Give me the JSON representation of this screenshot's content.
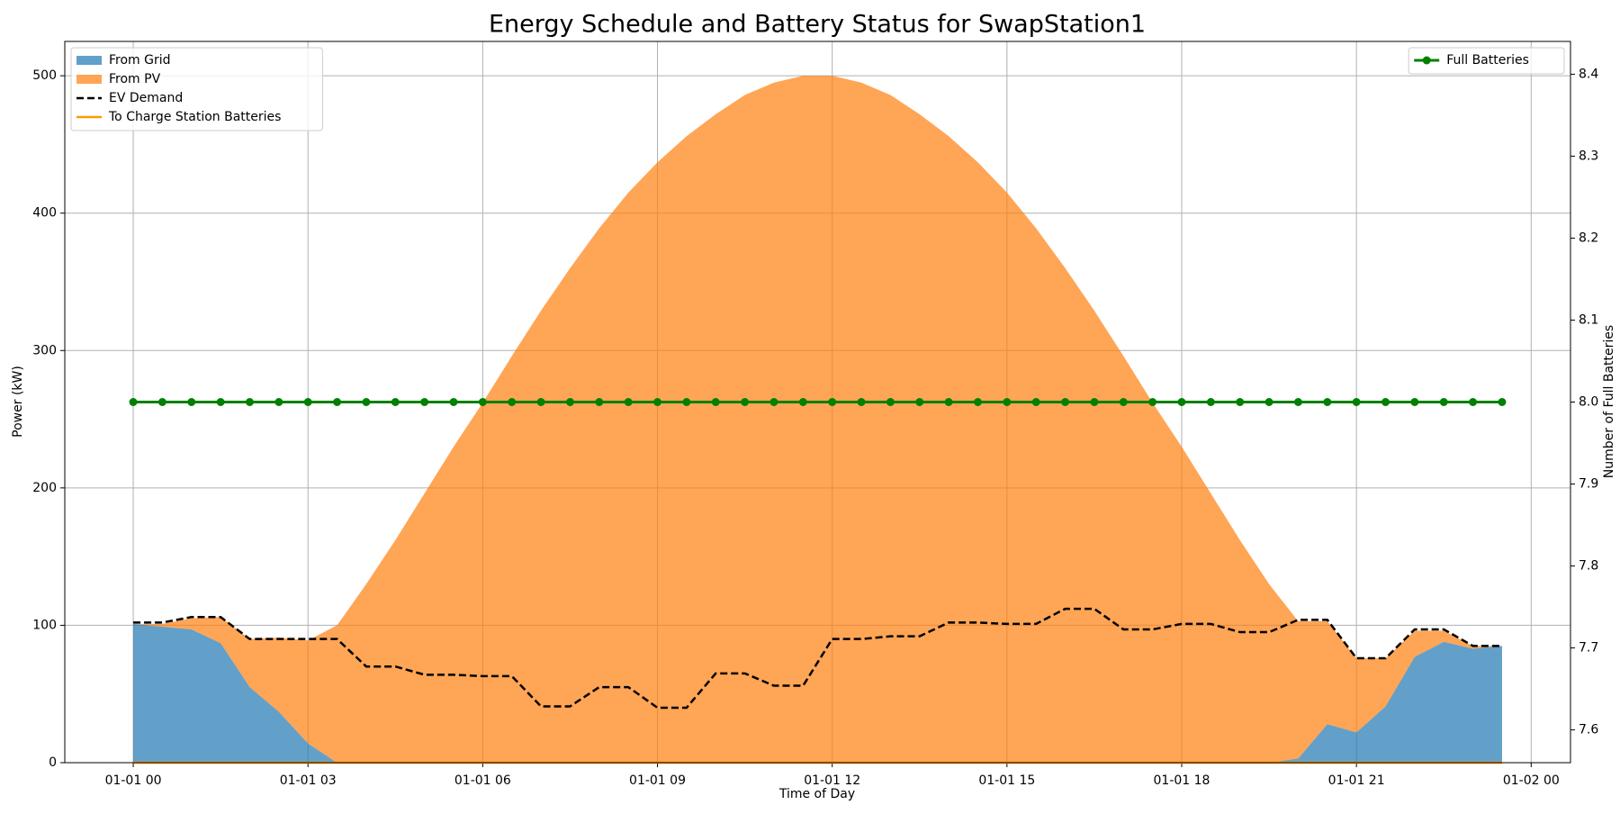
{
  "chart_data": {
    "type": "stacked-area-line",
    "title": "Energy Schedule and Battery Status for SwapStation1",
    "x_label": "Time of Day",
    "y_label": "Power (kW)",
    "y2_label": "Number of Full Batteries",
    "x": [
      0,
      0.5,
      1,
      1.5,
      2,
      2.5,
      3,
      3.5,
      4,
      4.5,
      5,
      5.5,
      6,
      6.5,
      7,
      7.5,
      8,
      8.5,
      9,
      9.5,
      10,
      10.5,
      11,
      11.5,
      12,
      12.5,
      13,
      13.5,
      14,
      14.5,
      15,
      15.5,
      16,
      16.5,
      17,
      17.5,
      18,
      18.5,
      19,
      19.5,
      20,
      20.5,
      21,
      21.5,
      22,
      22.5,
      23,
      23.5
    ],
    "xlim": [
      -1.175,
      24.675
    ],
    "xticks": [
      {
        "value": 0,
        "label": "01-01 00"
      },
      {
        "value": 3,
        "label": "01-01 03"
      },
      {
        "value": 6,
        "label": "01-01 06"
      },
      {
        "value": 9,
        "label": "01-01 09"
      },
      {
        "value": 12,
        "label": "01-01 12"
      },
      {
        "value": 15,
        "label": "01-01 15"
      },
      {
        "value": 18,
        "label": "01-01 18"
      },
      {
        "value": 21,
        "label": "01-01 21"
      },
      {
        "value": 24,
        "label": "01-02 00"
      }
    ],
    "ylim": [
      0,
      525
    ],
    "yticks": [
      0,
      100,
      200,
      300,
      400,
      500
    ],
    "y2lim": [
      7.56,
      8.44
    ],
    "y2ticks": [
      7.6,
      7.7,
      7.8,
      7.9,
      {
        "value": 8,
        "label": "8.0"
      },
      8.1,
      8.2,
      8.3,
      8.4
    ],
    "grid": true,
    "legend": "upper left",
    "legend2": "upper right",
    "series": [
      {
        "name": "From Grid",
        "kind": "area",
        "color": "#1f77b4",
        "opacity": 0.7,
        "values": [
          101,
          99,
          97,
          87,
          55,
          37,
          14,
          0,
          0,
          0,
          0,
          0,
          0,
          0,
          0,
          0,
          0,
          0,
          0,
          0,
          0,
          0,
          0,
          0,
          0,
          0,
          0,
          0,
          0,
          0,
          0,
          0,
          0,
          0,
          0,
          0,
          0,
          0,
          0,
          0,
          3,
          28,
          22,
          41,
          77,
          88,
          83,
          85
        ]
      },
      {
        "name": "From PV",
        "kind": "area",
        "color": "#ff7f0e",
        "opacity": 0.7,
        "values": [
          0,
          2,
          8,
          19,
          35,
          54,
          75,
          100,
          130,
          162,
          196,
          230,
          262,
          296,
          329,
          360,
          389,
          415,
          437,
          456,
          472,
          486,
          495,
          500,
          500,
          495,
          486,
          472,
          456,
          437,
          415,
          389,
          360,
          329,
          296,
          262,
          230,
          196,
          162,
          130,
          100,
          75,
          54,
          35,
          19,
          8,
          2,
          0
        ]
      },
      {
        "name": "EV Demand",
        "kind": "line",
        "linestyle": "dashed",
        "color": "#000000",
        "values": [
          102,
          102,
          106,
          106,
          90,
          90,
          90,
          90,
          70,
          70,
          64,
          64,
          63,
          63,
          41,
          41,
          55,
          55,
          40,
          40,
          65,
          65,
          56,
          56,
          90,
          90,
          92,
          92,
          102,
          102,
          101,
          101,
          112,
          112,
          97,
          97,
          101,
          101,
          95,
          95,
          104,
          104,
          76,
          76,
          97,
          97,
          85,
          85
        ]
      },
      {
        "name": "To Charge Station Batteries",
        "kind": "line",
        "color": "#ff9900",
        "values": [
          0,
          0,
          0,
          0,
          0,
          0,
          0,
          0,
          0,
          0,
          0,
          0,
          0,
          0,
          0,
          0,
          0,
          0,
          0,
          0,
          0,
          0,
          0,
          0,
          0,
          0,
          0,
          0,
          0,
          0,
          0,
          0,
          0,
          0,
          0,
          0,
          0,
          0,
          0,
          0,
          0,
          0,
          0,
          0,
          0,
          0,
          0,
          0
        ]
      },
      {
        "name": "Full Batteries",
        "kind": "line",
        "axis": "y2",
        "marker": true,
        "color": "#008000",
        "values": [
          8,
          8,
          8,
          8,
          8,
          8,
          8,
          8,
          8,
          8,
          8,
          8,
          8,
          8,
          8,
          8,
          8,
          8,
          8,
          8,
          8,
          8,
          8,
          8,
          8,
          8,
          8,
          8,
          8,
          8,
          8,
          8,
          8,
          8,
          8,
          8,
          8,
          8,
          8,
          8,
          8,
          8,
          8,
          8,
          8,
          8,
          8,
          8
        ]
      }
    ]
  }
}
